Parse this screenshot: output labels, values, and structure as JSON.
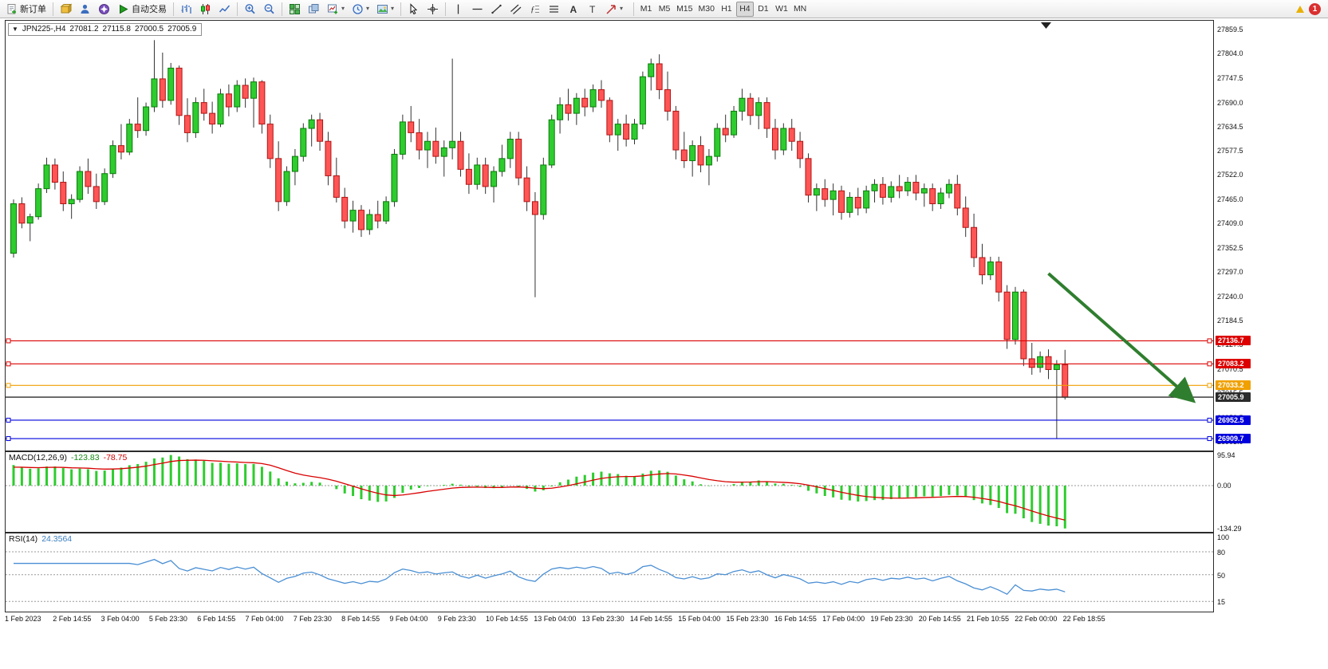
{
  "colors": {
    "bull": "#2ecc2e",
    "bull_stroke": "#0b7a0b",
    "bear": "#ff5555",
    "bear_stroke": "#b01515",
    "wick": "#333333",
    "macd_hist": "#2ecc2e",
    "macd_signal": "#d90000",
    "rsi_line": "#4a8fd4",
    "level_red": "#dd0000",
    "level_orange": "#f0a000",
    "level_blue": "#0000dd",
    "bid": "#2b2b2b",
    "arrow": "#2f7e2f"
  },
  "toolbar": {
    "new_order_label": "新订单",
    "autotrade_label": "自动交易",
    "timeframes": [
      "M1",
      "M5",
      "M15",
      "M30",
      "H1",
      "H4",
      "D1",
      "W1",
      "MN"
    ],
    "active_timeframe": "H4",
    "notification_count": "1"
  },
  "chart": {
    "header": {
      "symbol_period": "JPN225-,H4",
      "open": "27081.2",
      "high": "27115.8",
      "low": "27000.5",
      "close": "27005.9"
    },
    "price_axis": [
      "27859.5",
      "27804.0",
      "27747.5",
      "27690.0",
      "27634.5",
      "27577.5",
      "27522.0",
      "27465.0",
      "27409.0",
      "27352.5",
      "27297.0",
      "27240.0",
      "27184.5",
      "27127.5",
      "27070.5",
      "27015.5",
      "26958.5",
      "26903.0"
    ]
  },
  "macd": {
    "label": "MACD(12,26,9)",
    "value": "-123.83",
    "signal_value": "-78.75",
    "axis": [
      "95.94",
      "0.00",
      "-134.29"
    ]
  },
  "rsi": {
    "label": "RSI(14)",
    "value": "24.3564",
    "axis": [
      "100",
      "80",
      "50",
      "15"
    ]
  },
  "chart_data": {
    "type": "candlestick",
    "symbol": "JPN225-",
    "timeframe": "H4",
    "title": "JPN225-,H4 27081.2 27115.8 27000.5 27005.9",
    "price_range_visible": [
      26903.0,
      27859.5
    ],
    "ohlc_last": {
      "open": 27081.2,
      "high": 27115.8,
      "low": 27000.5,
      "close": 27005.9
    },
    "candles": [
      [
        27340,
        27465,
        27330,
        27455
      ],
      [
        27455,
        27470,
        27398,
        27410
      ],
      [
        27410,
        27432,
        27368,
        27425
      ],
      [
        27425,
        27502,
        27418,
        27490
      ],
      [
        27490,
        27562,
        27480,
        27545
      ],
      [
        27545,
        27560,
        27488,
        27505
      ],
      [
        27505,
        27530,
        27438,
        27455
      ],
      [
        27455,
        27477,
        27420,
        27465
      ],
      [
        27465,
        27542,
        27458,
        27530
      ],
      [
        27530,
        27560,
        27478,
        27495
      ],
      [
        27495,
        27525,
        27443,
        27460
      ],
      [
        27460,
        27537,
        27452,
        27525
      ],
      [
        27525,
        27602,
        27515,
        27590
      ],
      [
        27590,
        27640,
        27558,
        27575
      ],
      [
        27575,
        27652,
        27568,
        27640
      ],
      [
        27640,
        27702,
        27608,
        27625
      ],
      [
        27625,
        27690,
        27613,
        27680
      ],
      [
        27680,
        27835,
        27668,
        27745
      ],
      [
        27745,
        27806,
        27678,
        27695
      ],
      [
        27695,
        27782,
        27685,
        27770
      ],
      [
        27770,
        27776,
        27638,
        27660
      ],
      [
        27660,
        27700,
        27598,
        27620
      ],
      [
        27620,
        27702,
        27608,
        27690
      ],
      [
        27690,
        27722,
        27648,
        27665
      ],
      [
        27665,
        27692,
        27618,
        27640
      ],
      [
        27640,
        27722,
        27633,
        27710
      ],
      [
        27710,
        27732,
        27658,
        27680
      ],
      [
        27680,
        27742,
        27668,
        27730
      ],
      [
        27730,
        27746,
        27678,
        27700
      ],
      [
        27700,
        27748,
        27632,
        27738
      ],
      [
        27738,
        27742,
        27618,
        27640
      ],
      [
        27640,
        27662,
        27538,
        27560
      ],
      [
        27560,
        27600,
        27438,
        27460
      ],
      [
        27460,
        27542,
        27450,
        27530
      ],
      [
        27530,
        27582,
        27498,
        27565
      ],
      [
        27565,
        27642,
        27553,
        27630
      ],
      [
        27630,
        27662,
        27588,
        27650
      ],
      [
        27650,
        27666,
        27578,
        27600
      ],
      [
        27600,
        27622,
        27498,
        27520
      ],
      [
        27520,
        27562,
        27458,
        27470
      ],
      [
        27470,
        27492,
        27398,
        27415
      ],
      [
        27415,
        27462,
        27388,
        27440
      ],
      [
        27440,
        27452,
        27378,
        27395
      ],
      [
        27395,
        27442,
        27383,
        27430
      ],
      [
        27430,
        27462,
        27398,
        27415
      ],
      [
        27415,
        27472,
        27408,
        27460
      ],
      [
        27460,
        27582,
        27448,
        27570
      ],
      [
        27570,
        27662,
        27558,
        27645
      ],
      [
        27645,
        27682,
        27598,
        27620
      ],
      [
        27620,
        27652,
        27558,
        27580
      ],
      [
        27580,
        27622,
        27538,
        27600
      ],
      [
        27600,
        27632,
        27548,
        27565
      ],
      [
        27565,
        27602,
        27518,
        27585
      ],
      [
        27585,
        27792,
        27558,
        27600
      ],
      [
        27600,
        27622,
        27518,
        27535
      ],
      [
        27535,
        27572,
        27478,
        27500
      ],
      [
        27500,
        27562,
        27488,
        27545
      ],
      [
        27545,
        27562,
        27478,
        27495
      ],
      [
        27495,
        27542,
        27458,
        27530
      ],
      [
        27530,
        27592,
        27518,
        27560
      ],
      [
        27560,
        27622,
        27538,
        27605
      ],
      [
        27605,
        27622,
        27498,
        27515
      ],
      [
        27515,
        27542,
        27438,
        27460
      ],
      [
        27460,
        27482,
        27238,
        27430
      ],
      [
        27430,
        27562,
        27418,
        27545
      ],
      [
        27545,
        27662,
        27538,
        27650
      ],
      [
        27650,
        27702,
        27618,
        27685
      ],
      [
        27685,
        27722,
        27648,
        27665
      ],
      [
        27665,
        27712,
        27638,
        27700
      ],
      [
        27700,
        27722,
        27658,
        27680
      ],
      [
        27680,
        27732,
        27668,
        27720
      ],
      [
        27720,
        27742,
        27678,
        27695
      ],
      [
        27695,
        27702,
        27598,
        27615
      ],
      [
        27615,
        27652,
        27578,
        27640
      ],
      [
        27640,
        27662,
        27588,
        27605
      ],
      [
        27605,
        27652,
        27593,
        27640
      ],
      [
        27640,
        27762,
        27628,
        27750
      ],
      [
        27750,
        27792,
        27718,
        27780
      ],
      [
        27780,
        27802,
        27698,
        27720
      ],
      [
        27720,
        27762,
        27648,
        27670
      ],
      [
        27670,
        27682,
        27558,
        27580
      ],
      [
        27580,
        27622,
        27538,
        27555
      ],
      [
        27555,
        27602,
        27518,
        27590
      ],
      [
        27590,
        27612,
        27528,
        27545
      ],
      [
        27545,
        27582,
        27498,
        27565
      ],
      [
        27565,
        27642,
        27553,
        27630
      ],
      [
        27630,
        27662,
        27598,
        27615
      ],
      [
        27615,
        27682,
        27608,
        27670
      ],
      [
        27670,
        27722,
        27648,
        27700
      ],
      [
        27700,
        27712,
        27638,
        27660
      ],
      [
        27660,
        27702,
        27628,
        27690
      ],
      [
        27690,
        27702,
        27608,
        27630
      ],
      [
        27630,
        27652,
        27558,
        27580
      ],
      [
        27580,
        27642,
        27568,
        27630
      ],
      [
        27630,
        27652,
        27578,
        27600
      ],
      [
        27600,
        27622,
        27538,
        27560
      ],
      [
        27560,
        27572,
        27458,
        27475
      ],
      [
        27475,
        27502,
        27438,
        27490
      ],
      [
        27490,
        27512,
        27448,
        27465
      ],
      [
        27465,
        27502,
        27428,
        27485
      ],
      [
        27485,
        27497,
        27418,
        27435
      ],
      [
        27435,
        27482,
        27423,
        27470
      ],
      [
        27470,
        27492,
        27428,
        27445
      ],
      [
        27445,
        27497,
        27433,
        27485
      ],
      [
        27485,
        27512,
        27458,
        27500
      ],
      [
        27500,
        27517,
        27453,
        27470
      ],
      [
        27470,
        27507,
        27458,
        27495
      ],
      [
        27495,
        27522,
        27468,
        27485
      ],
      [
        27485,
        27517,
        27473,
        27505
      ],
      [
        27505,
        27522,
        27463,
        27480
      ],
      [
        27480,
        27502,
        27448,
        27490
      ],
      [
        27490,
        27502,
        27438,
        27455
      ],
      [
        27455,
        27492,
        27443,
        27480
      ],
      [
        27480,
        27512,
        27468,
        27500
      ],
      [
        27500,
        27522,
        27428,
        27445
      ],
      [
        27445,
        27472,
        27378,
        27400
      ],
      [
        27400,
        27432,
        27308,
        27330
      ],
      [
        27330,
        27362,
        27268,
        27290
      ],
      [
        27290,
        27332,
        27278,
        27320
      ],
      [
        27320,
        27332,
        27228,
        27250
      ],
      [
        27250,
        27266,
        27118,
        27140
      ],
      [
        27140,
        27262,
        27128,
        27250
      ],
      [
        27250,
        27256,
        27078,
        27095
      ],
      [
        27095,
        27132,
        27058,
        27075
      ],
      [
        27075,
        27112,
        27063,
        27100
      ],
      [
        27100,
        27117,
        27048,
        27070
      ],
      [
        27070,
        27092,
        26909.7,
        27081.2
      ],
      [
        27081.2,
        27115.8,
        27000.5,
        27005.9
      ]
    ],
    "time_labels": [
      "1 Feb 2023",
      "2 Feb 14:55",
      "3 Feb 04:00",
      "5 Feb 23:30",
      "6 Feb 14:55",
      "7 Feb 04:00",
      "7 Feb 23:30",
      "8 Feb 14:55",
      "9 Feb 04:00",
      "9 Feb 23:30",
      "10 Feb 14:55",
      "13 Feb 04:00",
      "13 Feb 23:30",
      "14 Feb 14:55",
      "15 Feb 04:00",
      "15 Feb 23:30",
      "16 Feb 14:55",
      "17 Feb 04:00",
      "19 Feb 23:30",
      "20 Feb 14:55",
      "21 Feb 10:55",
      "22 Feb 00:00",
      "22 Feb 18:55"
    ],
    "horizontal_levels": [
      {
        "price": 27136.7,
        "label": "27136.7",
        "color": "#dd0000",
        "is_bid": false
      },
      {
        "price": 27083.2,
        "label": "27083.2",
        "color": "#dd0000",
        "is_bid": false
      },
      {
        "price": 27033.2,
        "label": "27033.2",
        "color": "#f0a000",
        "is_bid": false
      },
      {
        "price": 27005.9,
        "label": "27005.9",
        "color": "#2b2b2b",
        "is_bid": true
      },
      {
        "price": 26952.5,
        "label": "26952.5",
        "color": "#0000dd",
        "is_bid": false
      },
      {
        "price": 26909.7,
        "label": "26909.7",
        "color": "#0000dd",
        "is_bid": false
      }
    ],
    "indicators": {
      "macd": {
        "fast": 12,
        "slow": 26,
        "signal": 9,
        "value": -123.83,
        "signal_value": -78.75,
        "axis_max": 95.94,
        "axis_min": -134.29
      },
      "rsi": {
        "period": 14,
        "value": 24.3564,
        "levels": [
          80,
          50,
          15
        ]
      }
    },
    "annotations": {
      "trend_arrow": {
        "from_bar": 125,
        "from_price": 27293,
        "to_bar": 142.5,
        "to_price": 26997,
        "color": "#2f7e2f"
      }
    }
  }
}
